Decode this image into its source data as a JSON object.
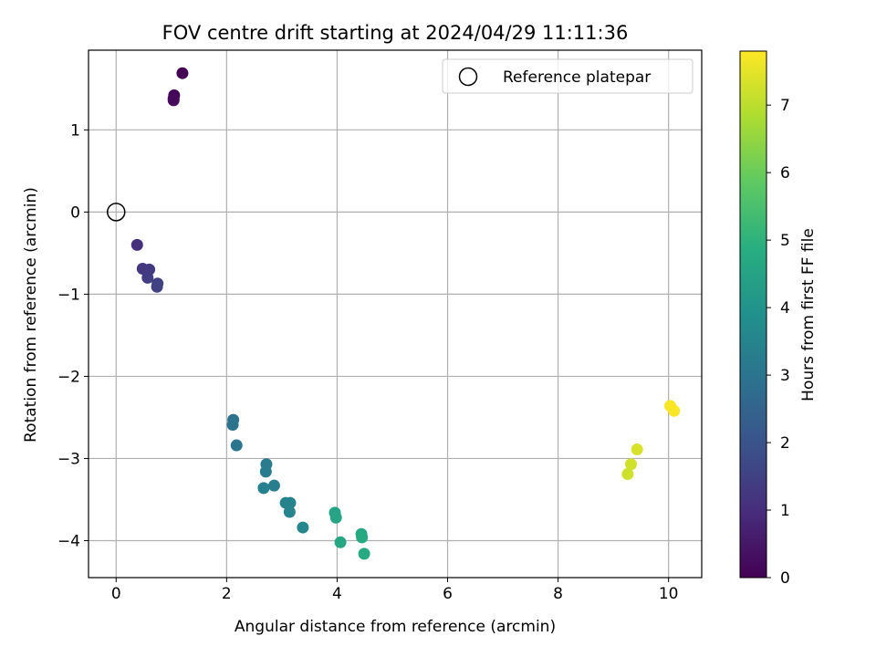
{
  "chart_data": {
    "type": "scatter",
    "title": "FOV centre drift starting at 2024/04/29 11:11:36",
    "xlabel": "Angular distance from reference (arcmin)",
    "ylabel": "Rotation from reference (arcmin)",
    "xlim": [
      -0.5,
      10.6
    ],
    "ylim": [
      -4.45,
      1.97
    ],
    "xticks": [
      0,
      2,
      4,
      6,
      8,
      10
    ],
    "xtick_labels": [
      "0",
      "2",
      "4",
      "6",
      "8",
      "10"
    ],
    "yticks": [
      1,
      0,
      -1,
      -2,
      -3,
      -4
    ],
    "ytick_labels": [
      "1",
      "0",
      "−1",
      "−2",
      "−3",
      "−4"
    ],
    "grid": true,
    "colormap": "viridis",
    "colorbar": {
      "label": "Hours from first FF file",
      "range": [
        0,
        7.8
      ],
      "ticks": [
        0,
        1,
        2,
        3,
        4,
        5,
        6,
        7
      ],
      "tick_labels": [
        "0",
        "1",
        "2",
        "3",
        "4",
        "5",
        "6",
        "7"
      ]
    },
    "legend": {
      "position": "top-right",
      "entries": [
        "Reference platepar"
      ]
    },
    "reference_point": {
      "x": 0,
      "y": 0
    },
    "points": [
      {
        "x": 1.2,
        "y": 1.69,
        "hours": 0.0
      },
      {
        "x": 1.05,
        "y": 1.42,
        "hours": 0.1
      },
      {
        "x": 1.04,
        "y": 1.38,
        "hours": 0.15
      },
      {
        "x": 1.04,
        "y": 1.36,
        "hours": 0.2
      },
      {
        "x": 0.38,
        "y": -0.4,
        "hours": 1.05
      },
      {
        "x": 0.48,
        "y": -0.69,
        "hours": 1.2
      },
      {
        "x": 0.6,
        "y": -0.7,
        "hours": 1.3
      },
      {
        "x": 0.57,
        "y": -0.8,
        "hours": 1.4
      },
      {
        "x": 0.75,
        "y": -0.87,
        "hours": 1.45
      },
      {
        "x": 0.74,
        "y": -0.91,
        "hours": 1.5
      },
      {
        "x": 2.12,
        "y": -2.53,
        "hours": 2.9
      },
      {
        "x": 2.11,
        "y": -2.59,
        "hours": 2.95
      },
      {
        "x": 2.18,
        "y": -2.84,
        "hours": 3.05
      },
      {
        "x": 2.72,
        "y": -3.07,
        "hours": 3.2
      },
      {
        "x": 2.71,
        "y": -3.16,
        "hours": 3.25
      },
      {
        "x": 2.86,
        "y": -3.33,
        "hours": 3.3
      },
      {
        "x": 2.67,
        "y": -3.36,
        "hours": 3.35
      },
      {
        "x": 3.07,
        "y": -3.54,
        "hours": 3.4
      },
      {
        "x": 3.15,
        "y": -3.54,
        "hours": 3.45
      },
      {
        "x": 3.14,
        "y": -3.65,
        "hours": 3.5
      },
      {
        "x": 3.38,
        "y": -3.84,
        "hours": 3.55
      },
      {
        "x": 3.96,
        "y": -3.66,
        "hours": 4.5
      },
      {
        "x": 3.98,
        "y": -3.72,
        "hours": 4.55
      },
      {
        "x": 4.06,
        "y": -4.02,
        "hours": 4.6
      },
      {
        "x": 4.44,
        "y": -3.92,
        "hours": 4.65
      },
      {
        "x": 4.45,
        "y": -3.96,
        "hours": 4.7
      },
      {
        "x": 4.49,
        "y": -4.16,
        "hours": 4.75
      },
      {
        "x": 9.26,
        "y": -3.19,
        "hours": 7.2
      },
      {
        "x": 9.32,
        "y": -3.07,
        "hours": 7.25
      },
      {
        "x": 9.43,
        "y": -2.89,
        "hours": 7.35
      },
      {
        "x": 10.03,
        "y": -2.36,
        "hours": 7.7
      },
      {
        "x": 10.1,
        "y": -2.42,
        "hours": 7.75
      }
    ]
  }
}
